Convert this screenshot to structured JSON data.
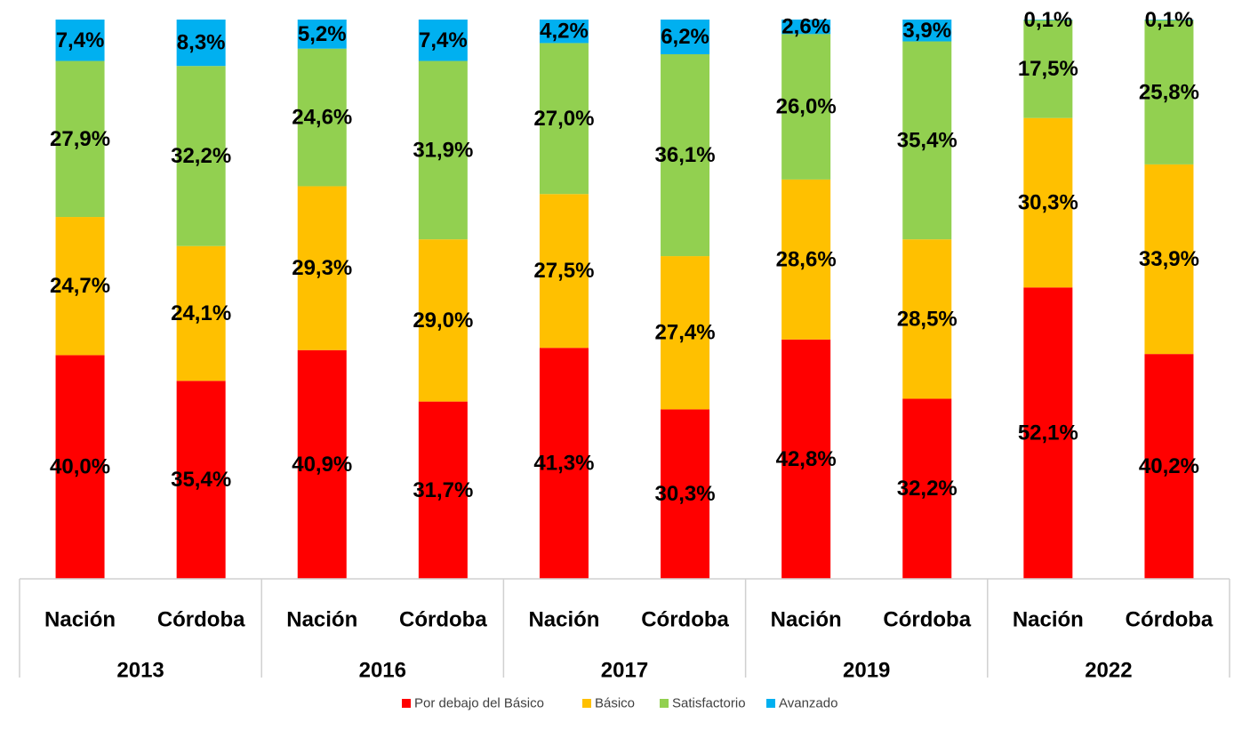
{
  "chart_data": {
    "type": "bar",
    "stacked": true,
    "groups": [
      "2013",
      "2016",
      "2017",
      "2019",
      "2022"
    ],
    "subcategories": [
      "Nación",
      "Córdoba"
    ],
    "series": [
      {
        "name": "Por debajo del Básico",
        "color": "#ff0000",
        "values": [
          40.0,
          35.4,
          40.9,
          31.7,
          41.3,
          30.3,
          42.8,
          32.2,
          52.1,
          40.2
        ],
        "labels": [
          "40,0%",
          "35,4%",
          "40,9%",
          "31,7%",
          "41,3%",
          "30,3%",
          "42,8%",
          "32,2%",
          "52,1%",
          "40,2%"
        ]
      },
      {
        "name": "Básico",
        "color": "#ffc000",
        "values": [
          24.7,
          24.1,
          29.3,
          29.0,
          27.5,
          27.4,
          28.6,
          28.5,
          30.3,
          33.9
        ],
        "labels": [
          "24,7%",
          "24,1%",
          "29,3%",
          "29,0%",
          "27,5%",
          "27,4%",
          "28,6%",
          "28,5%",
          "30,3%",
          "33,9%"
        ]
      },
      {
        "name": "Satisfactorio",
        "color": "#92d050",
        "values": [
          27.9,
          32.2,
          24.6,
          31.9,
          27.0,
          36.1,
          26.0,
          35.4,
          17.5,
          25.8
        ],
        "labels": [
          "27,9%",
          "32,2%",
          "24,6%",
          "31,9%",
          "27,0%",
          "36,1%",
          "26,0%",
          "35,4%",
          "17,5%",
          "25,8%"
        ]
      },
      {
        "name": "Avanzado",
        "color": "#00b0f0",
        "values": [
          7.4,
          8.3,
          5.2,
          7.4,
          4.2,
          6.2,
          2.6,
          3.9,
          0.1,
          0.1
        ],
        "labels": [
          "7,4%",
          "8,3%",
          "5,2%",
          "7,4%",
          "4,2%",
          "6,2%",
          "2,6%",
          "3,9%",
          "0,1%",
          "0,1%"
        ]
      }
    ],
    "ylim": [
      0,
      100
    ],
    "grid": false,
    "legend_position": "bottom",
    "title": "",
    "xlabel": "",
    "ylabel": ""
  }
}
